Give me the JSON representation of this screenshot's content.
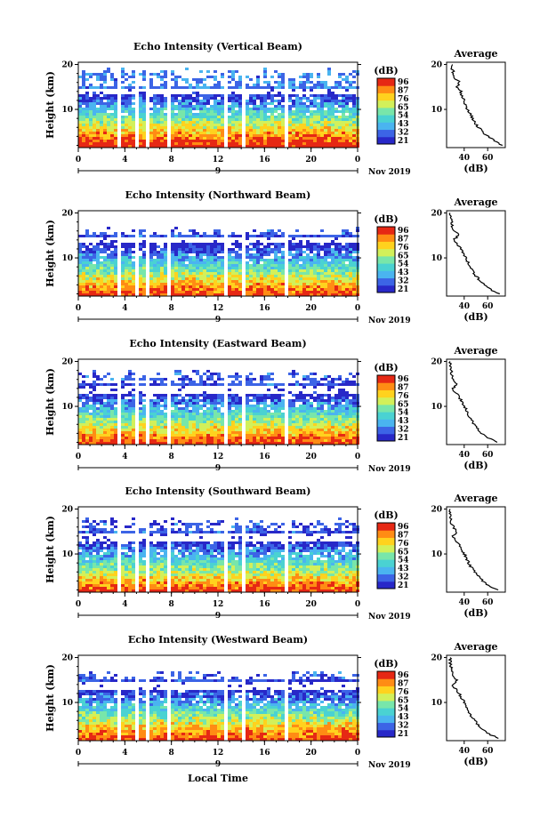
{
  "chart_data": {
    "type": "heatmap",
    "common": {
      "x_ticks": [
        "0",
        "4",
        "8",
        "12",
        "16",
        "20",
        "0"
      ],
      "x_range": [
        0,
        24
      ],
      "date_marker": "9",
      "month_label": "Nov 2019",
      "y_label": "Height (km)",
      "y_ticks": [
        "20",
        "10"
      ],
      "y_range": [
        1.5,
        20.5
      ],
      "colorbar_unit": "(dB)",
      "colorbar_ticks": [
        "96",
        "87",
        "76",
        "65",
        "54",
        "43",
        "32",
        "21"
      ],
      "colorscale": [
        "#2828c8",
        "#3c64e6",
        "#4ab4f0",
        "#4ad2d2",
        "#78e6aa",
        "#d2f05a",
        "#ffd21e",
        "#ff8c14",
        "#e62814"
      ],
      "avg_title": "Average",
      "avg_y_ticks": [
        "20",
        "10"
      ],
      "avg_x_ticks": [
        "40",
        "60"
      ],
      "avg_x_range": [
        25,
        75
      ],
      "avg_x_label": "(dB)",
      "x_axis_label": "Local Time",
      "data_gaps_hours": [
        [
          3.3,
          3.6
        ],
        [
          4.6,
          4.9
        ],
        [
          5.6,
          5.9
        ],
        [
          7.6,
          7.9
        ],
        [
          12.3,
          12.6
        ],
        [
          14.0,
          14.3
        ],
        [
          17.6,
          17.9
        ]
      ]
    },
    "panels": [
      {
        "title": "Echo Intensity (Vertical Beam)",
        "top_km": 19.5,
        "clear_band_km": [
          13.5,
          15.0
        ],
        "avg_profile": [
          [
            2,
            72
          ],
          [
            3,
            66
          ],
          [
            4,
            60
          ],
          [
            5,
            56
          ],
          [
            6,
            52
          ],
          [
            7,
            49
          ],
          [
            8,
            47
          ],
          [
            9,
            45
          ],
          [
            10,
            43
          ],
          [
            11,
            41
          ],
          [
            12,
            40
          ],
          [
            13,
            38
          ],
          [
            14,
            37
          ],
          [
            15,
            34
          ],
          [
            16,
            36
          ],
          [
            17,
            32
          ],
          [
            18,
            31
          ],
          [
            19,
            30
          ],
          [
            20,
            30
          ]
        ]
      },
      {
        "title": "Echo Intensity (Northward Beam)",
        "top_km": 17.0,
        "clear_band_km": [
          13.5,
          14.7
        ],
        "avg_profile": [
          [
            2,
            70
          ],
          [
            3,
            62
          ],
          [
            4,
            57
          ],
          [
            5,
            53
          ],
          [
            6,
            50
          ],
          [
            7,
            47
          ],
          [
            8,
            45
          ],
          [
            9,
            43
          ],
          [
            10,
            41
          ],
          [
            11,
            39
          ],
          [
            12,
            37
          ],
          [
            13,
            34
          ],
          [
            14,
            31
          ],
          [
            15,
            35
          ],
          [
            16,
            32
          ],
          [
            17,
            30
          ],
          [
            18,
            29
          ],
          [
            19,
            28
          ],
          [
            20,
            28
          ]
        ]
      },
      {
        "title": "Echo Intensity (Eastward Beam)",
        "top_km": 18.5,
        "clear_band_km": [
          13.0,
          14.6
        ],
        "avg_profile": [
          [
            2,
            68
          ],
          [
            3,
            60
          ],
          [
            4,
            55
          ],
          [
            5,
            51
          ],
          [
            6,
            48
          ],
          [
            7,
            46
          ],
          [
            8,
            44
          ],
          [
            9,
            42
          ],
          [
            10,
            40
          ],
          [
            11,
            38
          ],
          [
            12,
            36
          ],
          [
            13,
            33
          ],
          [
            14,
            30
          ],
          [
            15,
            34
          ],
          [
            16,
            31
          ],
          [
            17,
            29
          ],
          [
            18,
            29
          ],
          [
            19,
            28
          ],
          [
            20,
            28
          ]
        ]
      },
      {
        "title": "Echo Intensity (Southward Beam)",
        "top_km": 18.5,
        "clear_band_km": [
          13.0,
          14.6
        ],
        "avg_profile": [
          [
            2,
            69
          ],
          [
            3,
            61
          ],
          [
            4,
            56
          ],
          [
            5,
            52
          ],
          [
            6,
            49
          ],
          [
            7,
            46
          ],
          [
            8,
            44
          ],
          [
            9,
            42
          ],
          [
            10,
            40
          ],
          [
            11,
            38
          ],
          [
            12,
            36
          ],
          [
            13,
            33
          ],
          [
            14,
            30
          ],
          [
            15,
            34
          ],
          [
            16,
            31
          ],
          [
            17,
            29
          ],
          [
            18,
            29
          ],
          [
            19,
            28
          ],
          [
            20,
            28
          ]
        ]
      },
      {
        "title": "Echo Intensity (Westward Beam)",
        "top_km": 17.5,
        "clear_band_km": [
          13.0,
          14.6
        ],
        "avg_profile": [
          [
            2,
            69
          ],
          [
            3,
            61
          ],
          [
            4,
            56
          ],
          [
            5,
            52
          ],
          [
            6,
            49
          ],
          [
            7,
            46
          ],
          [
            8,
            44
          ],
          [
            9,
            42
          ],
          [
            10,
            40
          ],
          [
            11,
            38
          ],
          [
            12,
            36
          ],
          [
            13,
            33
          ],
          [
            14,
            30
          ],
          [
            15,
            34
          ],
          [
            16,
            31
          ],
          [
            17,
            29
          ],
          [
            18,
            29
          ],
          [
            19,
            28
          ],
          [
            20,
            28
          ]
        ]
      }
    ]
  }
}
